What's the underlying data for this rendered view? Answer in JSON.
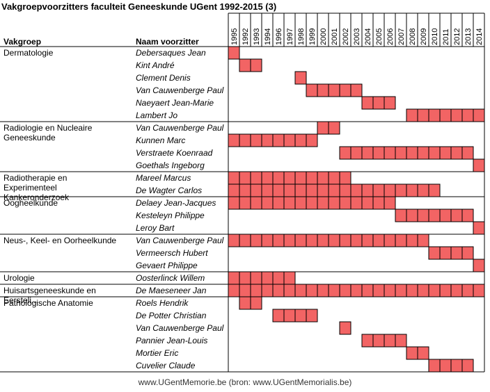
{
  "title": "Vakgroepvoorzitters faculteit Geneeskunde UGent 1992-2015 (3)",
  "footer": "www.UGentMemorie.be (bron: www.UGentMemorialis.be)",
  "colors": {
    "bar_fill": "#F26464",
    "bar_stroke": "#8B0000",
    "grid": "#000000"
  },
  "chart_data": {
    "type": "table",
    "col_headers": {
      "group": "Vakgroep",
      "name": "Naam voorzitter"
    },
    "years": [
      "1995",
      "1992",
      "1993",
      "1994",
      "1996",
      "1997",
      "1998",
      "1999",
      "2000",
      "2001",
      "2002",
      "2003",
      "2004",
      "2005",
      "2006",
      "2007",
      "2008",
      "2009",
      "2010",
      "2011",
      "2012",
      "2013",
      "2014"
    ],
    "groups": [
      {
        "label": "Dermatologie",
        "rows": [
          {
            "name": "Debersaques Jean",
            "cells": [
              0
            ]
          },
          {
            "name": "Kint André",
            "cells": [
              1,
              2
            ]
          },
          {
            "name": "Clement Denis",
            "cells": [
              6
            ]
          },
          {
            "name": "Van Cauwenberge Paul",
            "cells": [
              7,
              8,
              9,
              10,
              11
            ]
          },
          {
            "name": "Naeyaert Jean-Marie",
            "cells": [
              12,
              13,
              14
            ]
          },
          {
            "name": "Lambert Jo",
            "cells": [
              16,
              17,
              18,
              19,
              20,
              21,
              22
            ]
          }
        ]
      },
      {
        "label": "Radiologie en Nucleaire Geneeskunde",
        "rows": [
          {
            "name": "Van Cauwenberge Paul",
            "cells": [
              8,
              9
            ]
          },
          {
            "name": "Kunnen Marc",
            "cells": [
              0,
              1,
              2,
              3,
              4,
              5,
              6,
              7
            ]
          },
          {
            "name": "Verstraete Koenraad",
            "cells": [
              10,
              11,
              12,
              13,
              14,
              15,
              16,
              17,
              18,
              19,
              20,
              21
            ]
          },
          {
            "name": "Goethals Ingeborg",
            "cells": [
              22
            ]
          }
        ]
      },
      {
        "label": "Radiotherapie en Experimenteel Kankeronderzoek",
        "rows": [
          {
            "name": "Mareel Marcus",
            "cells": [
              0,
              1,
              2,
              3,
              4,
              5,
              6,
              7,
              8,
              9,
              10
            ]
          },
          {
            "name": "De Wagter Carlos",
            "cells": [
              0,
              1,
              2,
              3,
              4,
              5,
              6,
              7,
              8,
              9,
              10,
              11,
              12,
              13,
              14,
              15,
              16,
              17,
              18
            ]
          }
        ]
      },
      {
        "label": "Oogheelkunde",
        "rows": [
          {
            "name": "Delaey Jean-Jacques",
            "cells": [
              0,
              1,
              2,
              3,
              4,
              5,
              6,
              7,
              8,
              9,
              10,
              11,
              12,
              13,
              14
            ]
          },
          {
            "name": "Kesteleyn Philippe",
            "cells": [
              15,
              16,
              17,
              18,
              19,
              20,
              21
            ]
          },
          {
            "name": "Leroy Bart",
            "cells": [
              22
            ]
          }
        ]
      },
      {
        "label": "Neus-, Keel- en Oorheelkunde",
        "rows": [
          {
            "name": "Van Cauwenberge Paul",
            "cells": [
              0,
              1,
              2,
              3,
              4,
              5,
              6,
              7,
              8,
              9,
              10,
              11,
              12,
              13,
              14,
              15,
              16,
              17
            ]
          },
          {
            "name": "Vermeersch Hubert",
            "cells": [
              18,
              19,
              20,
              21
            ]
          },
          {
            "name": "Gevaert Philippe",
            "cells": [
              22
            ]
          }
        ]
      },
      {
        "label": "Urologie",
        "rows": [
          {
            "name": "Oosterlinck Willem",
            "cells": [
              0,
              1,
              2,
              3,
              4,
              5
            ]
          }
        ]
      },
      {
        "label": "Huisartsgeneeskunde en Eersteli...",
        "rows": [
          {
            "name": "De Maeseneer Jan",
            "cells": [
              0,
              1,
              2,
              3,
              4,
              5,
              6,
              7,
              8,
              9,
              10,
              11,
              12,
              13,
              14,
              15,
              16,
              17,
              18,
              19,
              20,
              21,
              22
            ]
          }
        ]
      },
      {
        "label": "Pathologische Anatomie",
        "rows": [
          {
            "name": "Roels Hendrik",
            "cells": [
              1,
              2
            ]
          },
          {
            "name": "De Potter Christian",
            "cells": [
              4,
              5,
              6,
              7
            ]
          },
          {
            "name": "Van Cauwenberge Paul",
            "cells": [
              10
            ]
          },
          {
            "name": "Pannier Jean-Louis",
            "cells": [
              12,
              13,
              14,
              15
            ]
          },
          {
            "name": "Mortier Eric",
            "cells": [
              16,
              17
            ]
          },
          {
            "name": "Cuvelier Claude",
            "cells": [
              18,
              19,
              20,
              21
            ]
          }
        ]
      }
    ]
  }
}
